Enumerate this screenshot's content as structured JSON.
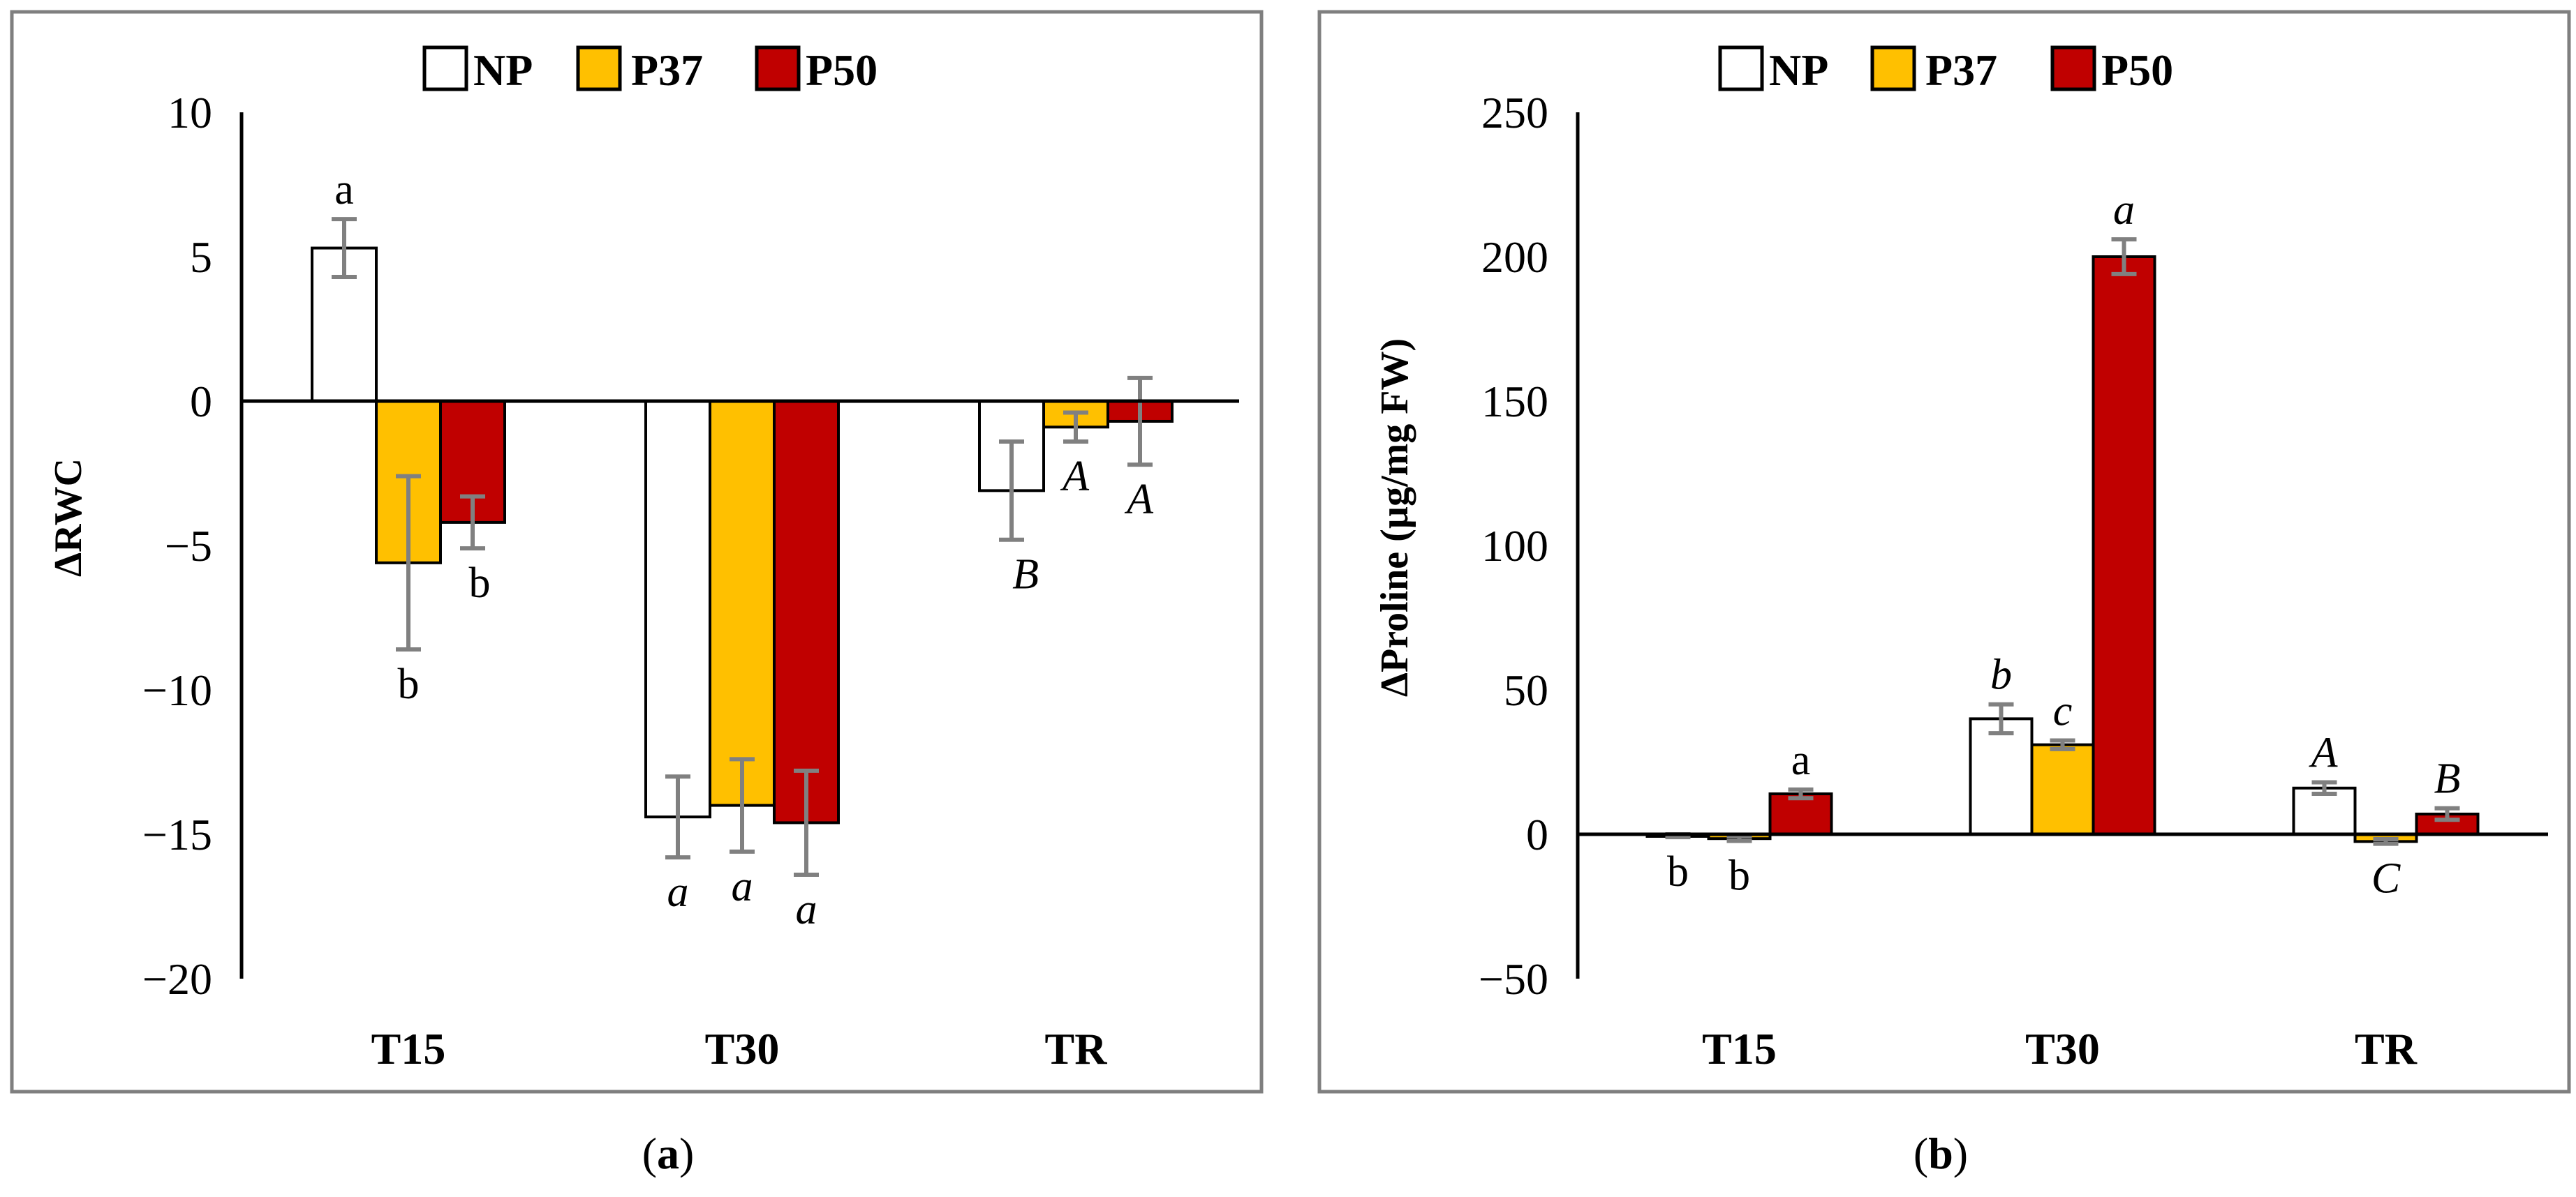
{
  "colors": {
    "NP": "#ffffff",
    "P37": "#ffc000",
    "P50": "#c00000"
  },
  "chart_data": [
    {
      "type": "bar",
      "panel_label": "a",
      "ylabel": "ΔRWC",
      "ylim": [
        -20,
        10
      ],
      "yticks": [
        10,
        5,
        0,
        -5,
        -10,
        -15,
        -20
      ],
      "ytick_labels": [
        "10",
        "5",
        "0",
        "−5",
        "−10",
        "−15",
        "−20"
      ],
      "categories": [
        "T15",
        "T30",
        "TR"
      ],
      "legend": [
        "NP",
        "P37",
        "P50"
      ],
      "series": [
        {
          "name": "NP",
          "values": [
            5.3,
            -14.4,
            -3.1
          ],
          "errors": [
            1.0,
            1.4,
            1.7
          ],
          "labels": [
            "a",
            "a",
            "B"
          ],
          "italic": [
            false,
            true,
            true
          ]
        },
        {
          "name": "P37",
          "values": [
            -5.6,
            -14.0,
            -0.9
          ],
          "errors": [
            3.0,
            1.6,
            0.5
          ],
          "labels": [
            "b",
            "a",
            "A"
          ],
          "italic": [
            false,
            true,
            true
          ]
        },
        {
          "name": "P50",
          "values": [
            -4.2,
            -14.6,
            -0.7
          ],
          "errors": [
            0.9,
            1.8,
            1.5
          ],
          "labels": [
            "b",
            "a",
            "A"
          ],
          "italic": [
            false,
            true,
            true
          ]
        }
      ]
    },
    {
      "type": "bar",
      "panel_label": "b",
      "ylabel": "ΔProline (µg/mg FW)",
      "ylim": [
        -50,
        250
      ],
      "yticks": [
        250,
        200,
        150,
        100,
        50,
        0,
        -50
      ],
      "ytick_labels": [
        "250",
        "200",
        "150",
        "100",
        "50",
        "0",
        "−50"
      ],
      "categories": [
        "T15",
        "T30",
        "TR"
      ],
      "legend": [
        "NP",
        "P37",
        "P50"
      ],
      "series": [
        {
          "name": "NP",
          "values": [
            -0.5,
            40,
            16
          ],
          "errors": [
            0.5,
            5,
            2
          ],
          "labels": [
            "b",
            "b",
            "A"
          ],
          "italic": [
            false,
            true,
            true
          ]
        },
        {
          "name": "P37",
          "values": [
            -1.5,
            31,
            -2.5
          ],
          "errors": [
            0.8,
            1.5,
            0.8
          ],
          "labels": [
            "b",
            "c",
            "C"
          ],
          "italic": [
            false,
            true,
            true
          ]
        },
        {
          "name": "P50",
          "values": [
            14,
            200,
            7
          ],
          "errors": [
            1.5,
            6,
            2
          ],
          "labels": [
            "a",
            "a",
            "B"
          ],
          "italic": [
            false,
            true,
            true
          ]
        }
      ]
    }
  ]
}
